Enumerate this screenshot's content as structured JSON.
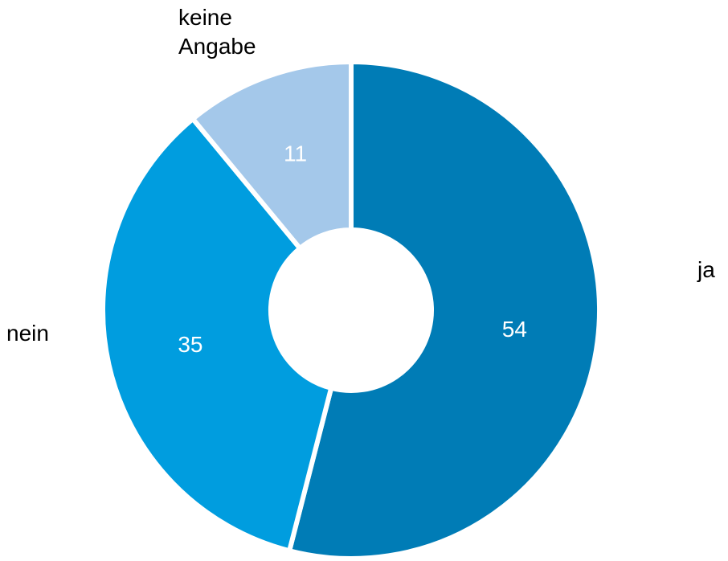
{
  "chart_data": {
    "type": "donut",
    "categories": [
      "ja",
      "nein",
      "keine Angabe"
    ],
    "values": [
      54,
      35,
      11
    ],
    "colors": [
      "#007cb6",
      "#009ddf",
      "#a4c8ea"
    ]
  }
}
